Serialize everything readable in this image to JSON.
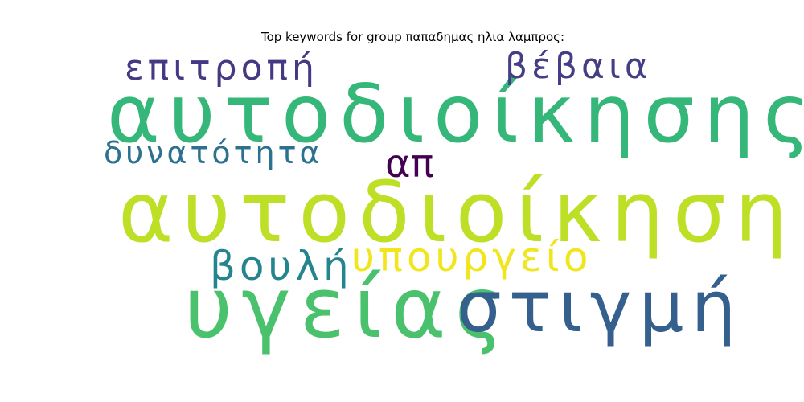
{
  "title": "Top keywords for group παπαδημας ηλια λαμπρος:",
  "words": [
    {
      "text": "αυτοδιοίκησης",
      "color": "#35b779"
    },
    {
      "text": "αυτοδιοίκηση",
      "color": "#bddf26"
    },
    {
      "text": "υγείας",
      "color": "#4ac16d"
    },
    {
      "text": "στιγμή",
      "color": "#355f8d"
    },
    {
      "text": "υπουργείο",
      "color": "#f1e51d"
    },
    {
      "text": "βουλή",
      "color": "#25858e"
    },
    {
      "text": "επιτροπή",
      "color": "#443983"
    },
    {
      "text": "βέβαια",
      "color": "#433e85"
    },
    {
      "text": "δυνατότητα",
      "color": "#2c728e"
    },
    {
      "text": "απ",
      "color": "#440154"
    }
  ]
}
